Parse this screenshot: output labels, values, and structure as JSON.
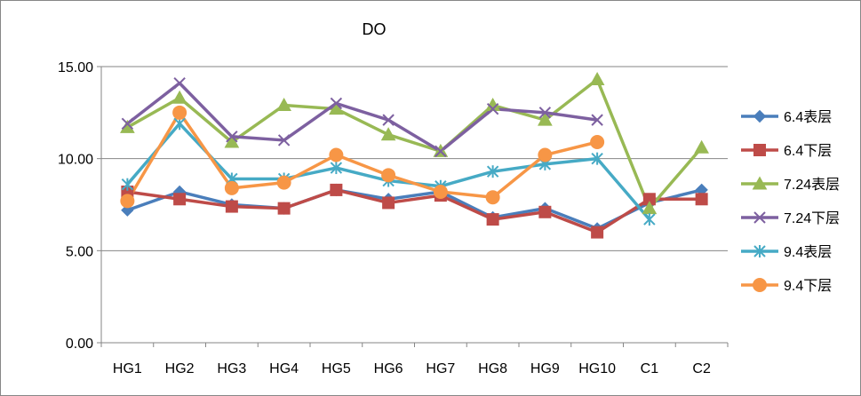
{
  "chart_data": {
    "type": "line",
    "title": "DO",
    "xlabel": "",
    "ylabel": "",
    "categories": [
      "HG1",
      "HG2",
      "HG3",
      "HG4",
      "HG5",
      "HG6",
      "HG7",
      "HG8",
      "HG9",
      "HG10",
      "C1",
      "C2"
    ],
    "ylim": [
      0,
      15
    ],
    "yticks": [
      0,
      5,
      10,
      15
    ],
    "ytick_labels": [
      "0.00",
      "5.00",
      "10.00",
      "15.00"
    ],
    "grid": "horizontal major gridlines",
    "legend_position": "right",
    "series": [
      {
        "name": "6.4表层",
        "color": "#4a7ebb",
        "marker": "diamond",
        "values": [
          7.2,
          8.2,
          7.5,
          7.3,
          8.3,
          7.8,
          8.2,
          6.8,
          7.3,
          6.2,
          7.6,
          8.3
        ]
      },
      {
        "name": "6.4下层",
        "color": "#be4b48",
        "marker": "square",
        "values": [
          8.2,
          7.8,
          7.4,
          7.3,
          8.3,
          7.6,
          8.0,
          6.7,
          7.1,
          6.0,
          7.8,
          7.8
        ]
      },
      {
        "name": "7.24表层",
        "color": "#98b954",
        "marker": "triangle",
        "values": [
          11.7,
          13.3,
          10.9,
          12.9,
          12.7,
          11.3,
          10.4,
          12.9,
          12.1,
          14.3,
          7.3,
          10.6
        ]
      },
      {
        "name": "7.24下层",
        "color": "#7d60a0",
        "marker": "x",
        "values": [
          11.9,
          14.1,
          11.2,
          11.0,
          13.0,
          12.1,
          10.4,
          12.7,
          12.5,
          12.1,
          null,
          null
        ]
      },
      {
        "name": "9.4表层",
        "color": "#46aac5",
        "marker": "star",
        "values": [
          8.6,
          11.9,
          8.9,
          8.9,
          9.5,
          8.8,
          8.5,
          9.3,
          9.7,
          10.0,
          6.7,
          null
        ]
      },
      {
        "name": "9.4下层",
        "color": "#f79646",
        "marker": "circle",
        "values": [
          7.7,
          12.5,
          8.4,
          8.7,
          10.2,
          9.1,
          8.2,
          7.9,
          10.2,
          10.9,
          null,
          null
        ]
      }
    ]
  }
}
